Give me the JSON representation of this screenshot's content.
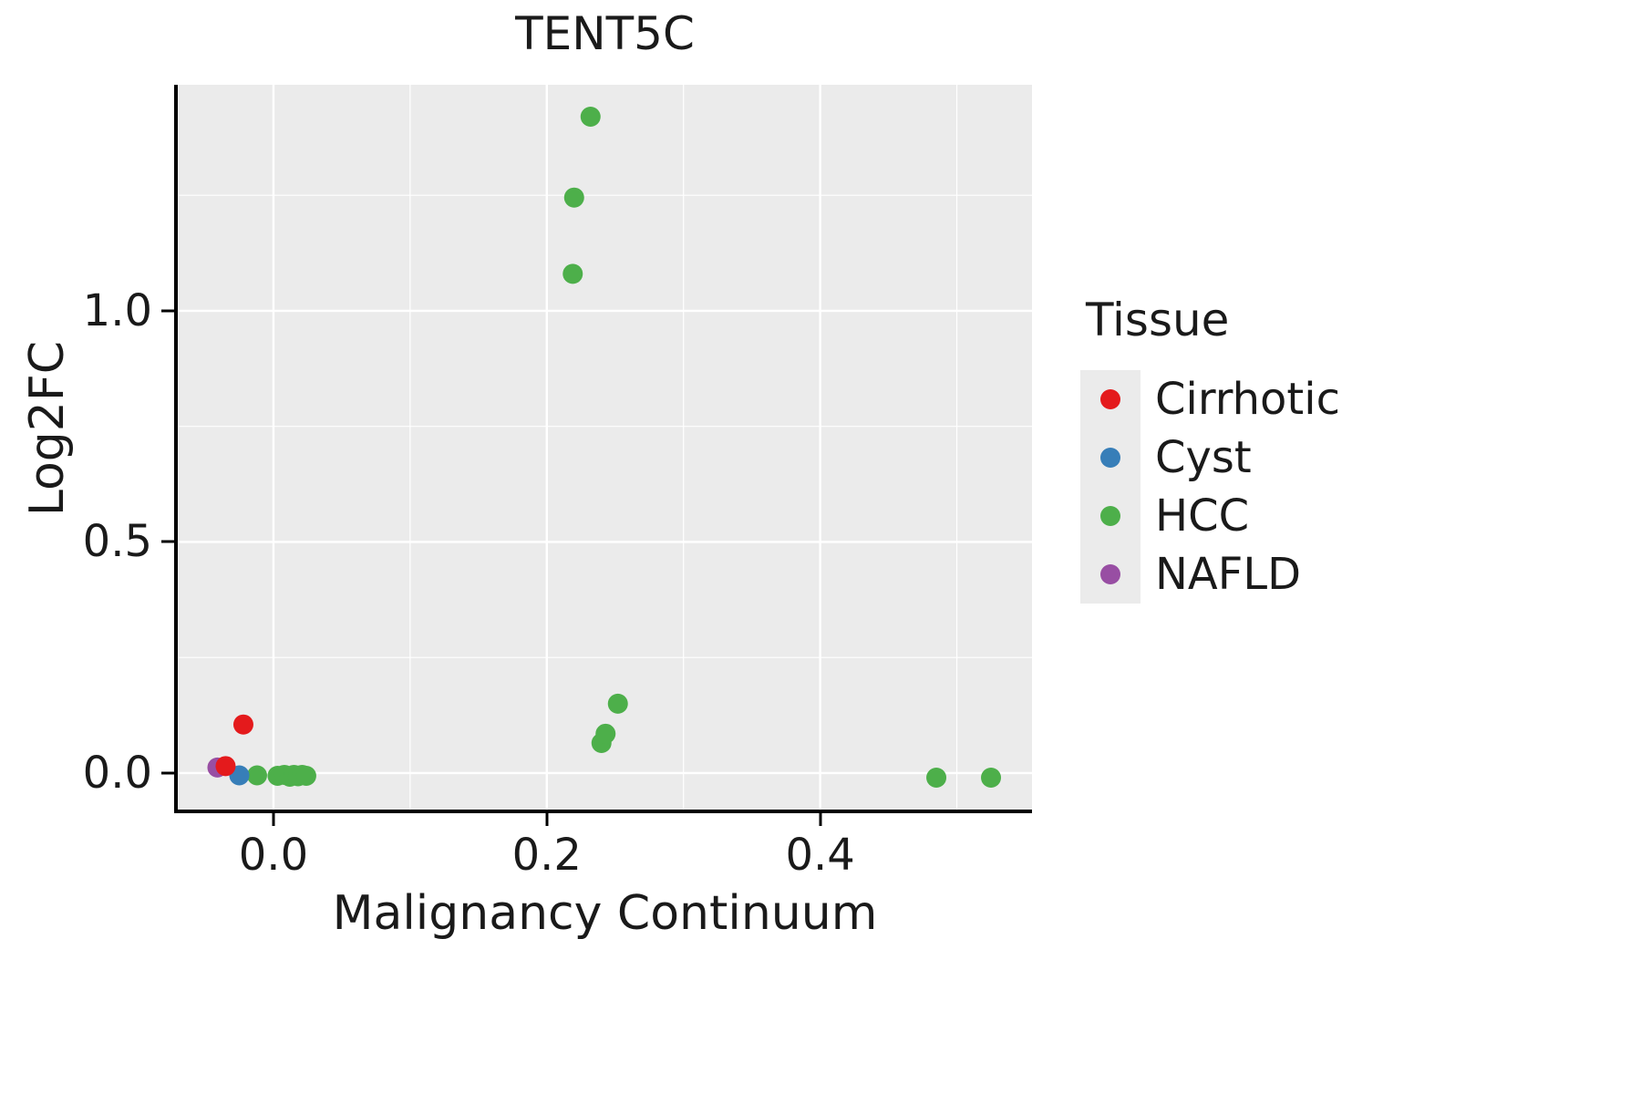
{
  "title": "TENT5C",
  "x_axis_label": "Malignancy Continuum",
  "y_axis_label": "Log2FC",
  "legend": {
    "title": "Tissue",
    "items": [
      {
        "label": "Cirrhotic",
        "color": "#E41A1C"
      },
      {
        "label": "Cyst",
        "color": "#377EB8"
      },
      {
        "label": "HCC",
        "color": "#4DAF4A"
      },
      {
        "label": "NAFLD",
        "color": "#984EA3"
      }
    ]
  },
  "chart_data": {
    "type": "scatter",
    "title": "TENT5C",
    "xlabel": "Malignancy Continuum",
    "ylabel": "Log2FC",
    "xlim": [
      -0.07,
      0.555
    ],
    "ylim": [
      -0.079,
      1.489
    ],
    "panel_background": "#EBEBEB",
    "gridline_color": "#FFFFFF",
    "legend_position": "right",
    "grid": {
      "x_major": [
        0.0,
        0.2,
        0.4
      ],
      "x_minor": [
        0.1,
        0.3,
        0.5
      ],
      "y_major": [
        0.0,
        0.5,
        1.0
      ],
      "y_minor": [
        0.25,
        0.75,
        1.25
      ]
    },
    "x_ticks": [
      {
        "value": 0.0,
        "label": "0.0"
      },
      {
        "value": 0.2,
        "label": "0.2"
      },
      {
        "value": 0.4,
        "label": "0.4"
      }
    ],
    "y_ticks": [
      {
        "value": 0.0,
        "label": "0.0"
      },
      {
        "value": 0.5,
        "label": "0.5"
      },
      {
        "value": 1.0,
        "label": "1.0"
      }
    ],
    "point_radius": 11,
    "series": [
      {
        "name": "HCC",
        "color": "#4DAF4A",
        "points": [
          [
            -0.012,
            -0.005
          ],
          [
            0.003,
            -0.006
          ],
          [
            0.008,
            -0.004
          ],
          [
            0.012,
            -0.008
          ],
          [
            0.015,
            -0.004
          ],
          [
            0.018,
            -0.007
          ],
          [
            0.021,
            -0.004
          ],
          [
            0.024,
            -0.006
          ],
          [
            0.219,
            1.08
          ],
          [
            0.22,
            1.245
          ],
          [
            0.232,
            1.42
          ],
          [
            0.24,
            0.065
          ],
          [
            0.243,
            0.085
          ],
          [
            0.252,
            0.15
          ],
          [
            0.485,
            -0.01
          ],
          [
            0.525,
            -0.01
          ]
        ]
      },
      {
        "name": "NAFLD",
        "color": "#984EA3",
        "points": [
          [
            -0.041,
            0.012
          ]
        ]
      },
      {
        "name": "Cyst",
        "color": "#377EB8",
        "points": [
          [
            -0.025,
            -0.005
          ]
        ]
      },
      {
        "name": "Cirrhotic",
        "color": "#E41A1C",
        "points": [
          [
            -0.035,
            0.015
          ],
          [
            -0.022,
            0.105
          ]
        ]
      }
    ]
  }
}
